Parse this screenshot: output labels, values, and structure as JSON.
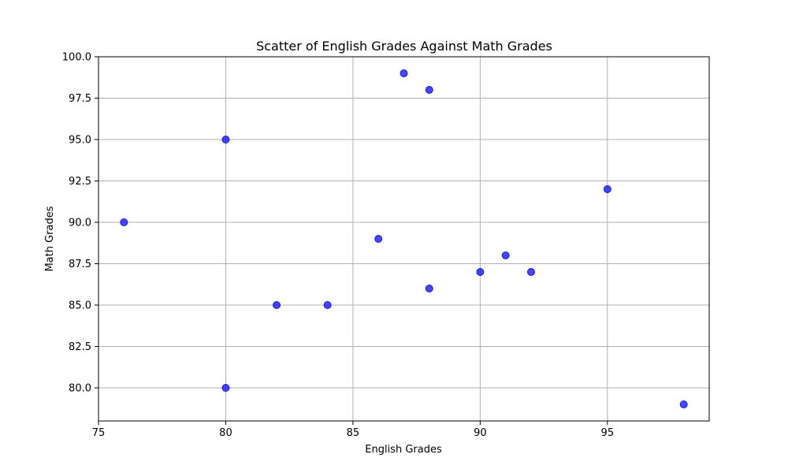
{
  "chart_data": {
    "type": "scatter",
    "title": "Scatter of English Grades Against Math Grades",
    "xlabel": "English Grades",
    "ylabel": "Math Grades",
    "xlim": [
      75,
      99
    ],
    "ylim": [
      78,
      100
    ],
    "x_ticks": [
      75,
      80,
      85,
      90,
      95
    ],
    "x_tick_labels": [
      "75",
      "80",
      "85",
      "90",
      "95"
    ],
    "y_ticks": [
      80,
      82.5,
      85,
      87.5,
      90,
      92.5,
      95,
      97.5,
      100
    ],
    "y_tick_labels": [
      "80.0",
      "82.5",
      "85.0",
      "87.5",
      "90.0",
      "92.5",
      "95.0",
      "97.5",
      "100.0"
    ],
    "grid": true,
    "series": [
      {
        "color": "#0000ee",
        "points": [
          {
            "x": 76,
            "y": 90
          },
          {
            "x": 80,
            "y": 95
          },
          {
            "x": 80,
            "y": 80
          },
          {
            "x": 82,
            "y": 85
          },
          {
            "x": 84,
            "y": 85
          },
          {
            "x": 86,
            "y": 89
          },
          {
            "x": 87,
            "y": 99
          },
          {
            "x": 88,
            "y": 98
          },
          {
            "x": 88,
            "y": 86
          },
          {
            "x": 90,
            "y": 87
          },
          {
            "x": 91,
            "y": 88
          },
          {
            "x": 92,
            "y": 87
          },
          {
            "x": 95,
            "y": 92
          },
          {
            "x": 98,
            "y": 79
          }
        ]
      }
    ]
  }
}
